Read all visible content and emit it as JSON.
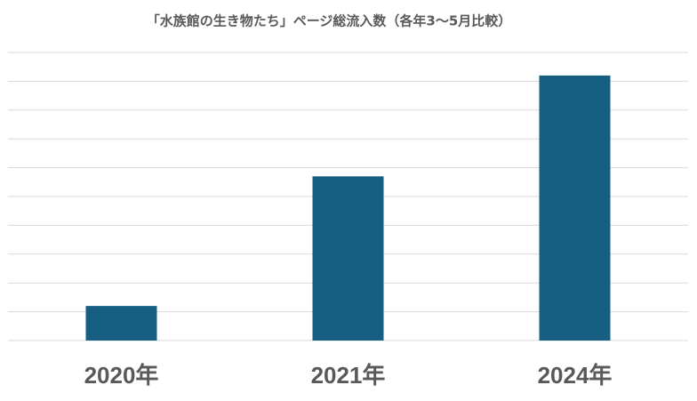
{
  "chart_data": {
    "type": "bar",
    "title": "「水族館の生き物たち」ページ総流入数（各年3〜5月比較）",
    "categories": [
      "2020年",
      "2021年",
      "2024年"
    ],
    "values": [
      1.2,
      5.7,
      9.2
    ],
    "color": "#165f82",
    "ylim": [
      0,
      10
    ],
    "yticks": [
      0,
      1,
      2,
      3,
      4,
      5,
      6,
      7,
      8,
      9,
      10
    ],
    "grid": true
  }
}
